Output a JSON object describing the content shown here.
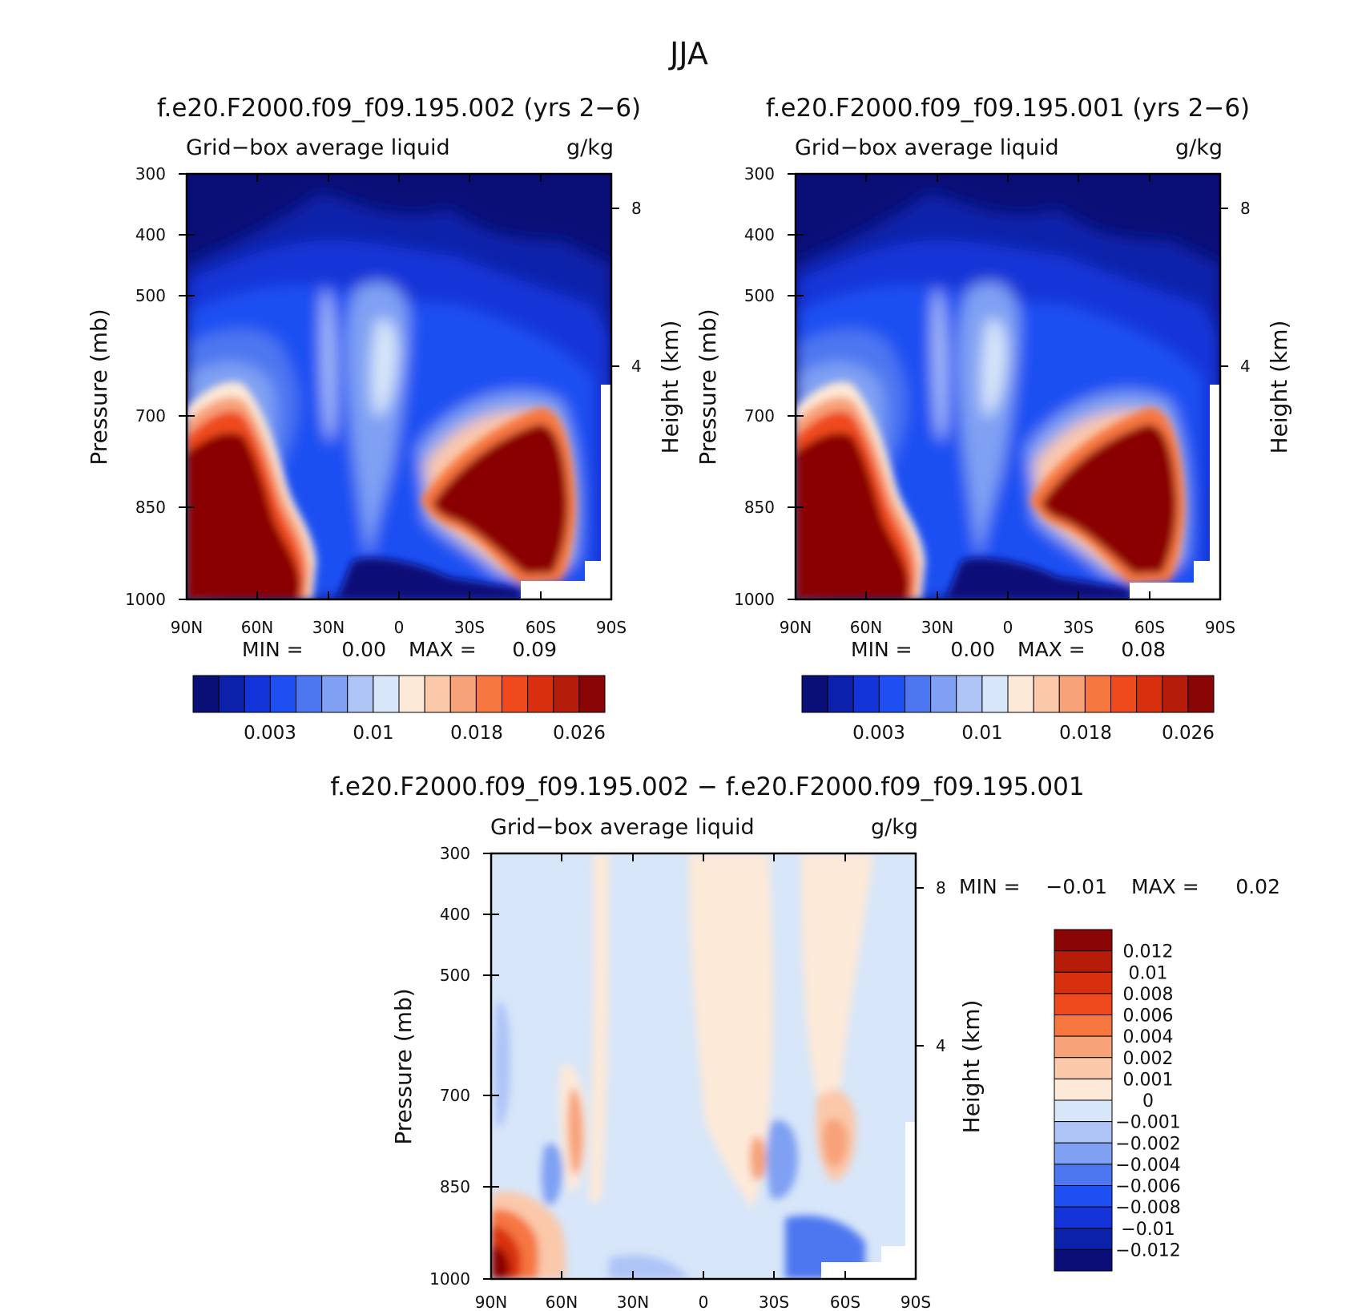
{
  "title": "JJA",
  "chart_data": [
    {
      "type": "heatmap",
      "panel": "left",
      "title": "f.e20.F2000.f09_f09.195.002 (yrs 2−6)",
      "subtitle_left": "Grid−box average liquid",
      "subtitle_right": "g/kg",
      "ylabel": "Pressure (mb)",
      "y2label": "Height (km)",
      "xticks": [
        "90N",
        "60N",
        "30N",
        "0",
        "30S",
        "60S",
        "90S"
      ],
      "yticks": [
        "300",
        "400",
        "500",
        "700",
        "850",
        "1000"
      ],
      "y2ticks": [
        "8",
        "4"
      ],
      "ylim": [
        300,
        1000
      ],
      "stats": {
        "min_label": "MIN =",
        "min": "0.00",
        "max_label": "MAX =",
        "max": "0.09"
      },
      "colorbar": {
        "labels": [
          "0.003",
          "0.01",
          "0.018",
          "0.026"
        ],
        "colors": [
          "#0a0f78",
          "#0b21aa",
          "#1334d8",
          "#1e4ff2",
          "#4d77f0",
          "#7fa0f3",
          "#aec4f7",
          "#d7e6f9",
          "#fde9d8",
          "#fbc8aa",
          "#f8a279",
          "#f6763f",
          "#ef4a1e",
          "#d8300e",
          "#b51d0a",
          "#8a0606"
        ]
      }
    },
    {
      "type": "heatmap",
      "panel": "right",
      "title": "f.e20.F2000.f09_f09.195.001 (yrs 2−6)",
      "subtitle_left": "Grid−box average liquid",
      "subtitle_right": "g/kg",
      "ylabel": "Pressure (mb)",
      "y2label": "Height (km)",
      "xticks": [
        "90N",
        "60N",
        "30N",
        "0",
        "30S",
        "60S",
        "90S"
      ],
      "yticks": [
        "300",
        "400",
        "500",
        "700",
        "850",
        "1000"
      ],
      "y2ticks": [
        "8",
        "4"
      ],
      "ylim": [
        300,
        1000
      ],
      "stats": {
        "min_label": "MIN =",
        "min": "0.00",
        "max_label": "MAX =",
        "max": "0.08"
      },
      "colorbar": {
        "labels": [
          "0.003",
          "0.01",
          "0.018",
          "0.026"
        ],
        "colors": [
          "#0a0f78",
          "#0b21aa",
          "#1334d8",
          "#1e4ff2",
          "#4d77f0",
          "#7fa0f3",
          "#aec4f7",
          "#d7e6f9",
          "#fde9d8",
          "#fbc8aa",
          "#f8a279",
          "#f6763f",
          "#ef4a1e",
          "#d8300e",
          "#b51d0a",
          "#8a0606"
        ]
      }
    },
    {
      "type": "heatmap",
      "panel": "difference",
      "title": "f.e20.F2000.f09_f09.195.002 − f.e20.F2000.f09_f09.195.001",
      "subtitle_left": "Grid−box average liquid",
      "subtitle_right": "g/kg",
      "ylabel": "Pressure (mb)",
      "y2label": "Height (km)",
      "xticks": [
        "90N",
        "60N",
        "30N",
        "0",
        "30S",
        "60S",
        "90S"
      ],
      "yticks": [
        "300",
        "400",
        "500",
        "700",
        "850",
        "1000"
      ],
      "y2ticks": [
        "8",
        "4"
      ],
      "ylim": [
        300,
        1000
      ],
      "stats": {
        "min_label": "MIN =",
        "min": "−0.01",
        "max_label": "MAX =",
        "max": "0.02"
      },
      "colorbar": {
        "labels": [
          "0.012",
          "0.01",
          "0.008",
          "0.006",
          "0.004",
          "0.002",
          "0.001",
          "0",
          "−0.001",
          "−0.002",
          "−0.004",
          "−0.006",
          "−0.008",
          "−0.01",
          "−0.012"
        ],
        "colors": [
          "#8a0606",
          "#b51d0a",
          "#d8300e",
          "#ef4a1e",
          "#f6763f",
          "#f8a279",
          "#fbc8aa",
          "#fde9d8",
          "#d7e6f9",
          "#aec4f7",
          "#7fa0f3",
          "#4d77f0",
          "#1e4ff2",
          "#1334d8",
          "#0b21aa",
          "#0a0f78"
        ]
      }
    }
  ]
}
